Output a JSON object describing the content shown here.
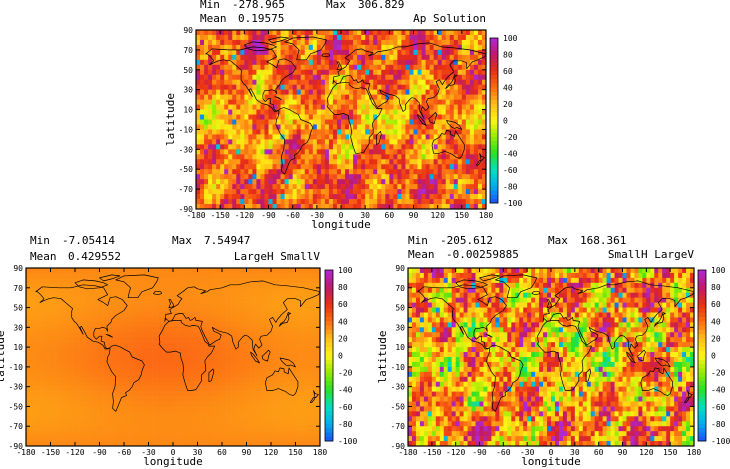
{
  "chart_data": [
    {
      "type": "heatmap",
      "title": "Ap Solution",
      "stats": {
        "min_label": "Min",
        "min": "-278.965",
        "max_label": "Max",
        "max": "306.829",
        "mean_label": "Mean",
        "mean": "0.19575"
      },
      "xlabel": "longitude",
      "ylabel": "latitude",
      "x_ticks": [
        "-180",
        "-150",
        "-120",
        "-90",
        "-60",
        "-30",
        "0",
        "30",
        "60",
        "90",
        "120",
        "150",
        "180"
      ],
      "y_ticks": [
        "90",
        "70",
        "50",
        "30",
        "10",
        "-10",
        "-30",
        "-50",
        "-70",
        "-90"
      ],
      "xlim": [
        -180,
        180
      ],
      "ylim": [
        -90,
        90
      ],
      "colorbar": {
        "ticks": [
          "100",
          "80",
          "60",
          "40",
          "20",
          "0",
          "-20",
          "-40",
          "-60",
          "-80",
          "-100"
        ],
        "range": [
          -100,
          100
        ]
      },
      "grid": "5 degree cells over world map with coastlines",
      "field": {
        "base": 38,
        "amplitude": 45,
        "seed": 11,
        "style": "noisy"
      }
    },
    {
      "type": "heatmap",
      "title": "LargeH SmallV",
      "stats": {
        "min_label": "Min",
        "min": "-7.05414",
        "max_label": "Max",
        "max": "7.54947",
        "mean_label": "Mean",
        "mean": "0.429552"
      },
      "xlabel": "longitude",
      "ylabel": "latitude",
      "x_ticks": [
        "-180",
        "-150",
        "-120",
        "-90",
        "-60",
        "-30",
        "0",
        "30",
        "60",
        "90",
        "120",
        "150",
        "180"
      ],
      "y_ticks": [
        "90",
        "70",
        "50",
        "30",
        "10",
        "-10",
        "-30",
        "-50",
        "-70",
        "-90"
      ],
      "xlim": [
        -180,
        180
      ],
      "ylim": [
        -90,
        90
      ],
      "colorbar": {
        "ticks": [
          "100",
          "80",
          "60",
          "40",
          "20",
          "0",
          "-20",
          "-40",
          "-60",
          "-80",
          "-100"
        ],
        "range": [
          -100,
          100
        ]
      },
      "grid": "5 degree cells over world map with coastlines",
      "field": {
        "base": 33,
        "amplitude": 4,
        "seed": 3,
        "style": "smooth"
      }
    },
    {
      "type": "heatmap",
      "title": "SmallH LargeV",
      "stats": {
        "min_label": "Min",
        "min": "-205.612",
        "max_label": "Max",
        "max": "168.361",
        "mean_label": "Mean",
        "mean": "-0.00259885"
      },
      "xlabel": "longitude",
      "ylabel": "latitude",
      "x_ticks": [
        "-180",
        "-150",
        "-120",
        "-90",
        "-60",
        "-30",
        "0",
        "30",
        "60",
        "90",
        "120",
        "150",
        "180"
      ],
      "y_ticks": [
        "90",
        "70",
        "50",
        "30",
        "10",
        "-10",
        "-30",
        "-50",
        "-70",
        "-90"
      ],
      "xlim": [
        -180,
        180
      ],
      "ylim": [
        -90,
        90
      ],
      "colorbar": {
        "ticks": [
          "100",
          "80",
          "60",
          "40",
          "20",
          "0",
          "-20",
          "-40",
          "-60",
          "-80",
          "-100"
        ],
        "range": [
          -100,
          100
        ]
      },
      "grid": "5 degree cells over world map with coastlines",
      "field": {
        "base": 25,
        "amplitude": 65,
        "seed": 29,
        "style": "noisy"
      }
    }
  ]
}
